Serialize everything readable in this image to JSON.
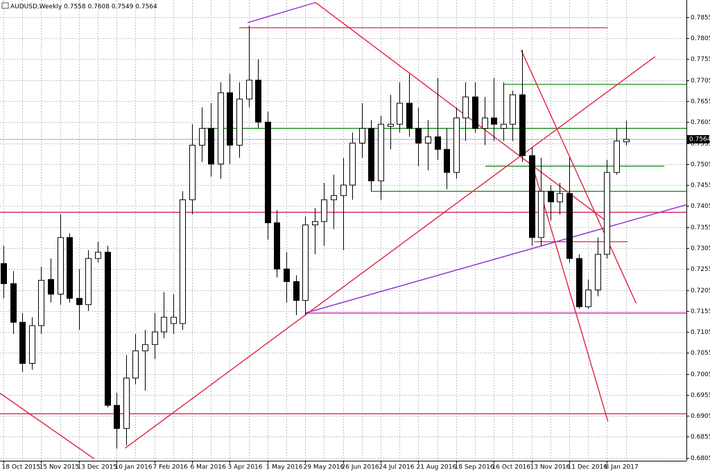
{
  "chart_data": {
    "type": "candlestick",
    "title": "AUDUSD,Weekly",
    "categories": [
      "18 Oct 2015",
      null,
      null,
      null,
      "15 Nov 2015",
      null,
      null,
      null,
      "13 Dec 2015",
      null,
      null,
      null,
      "10 Jan 2016",
      null,
      null,
      null,
      "7 Feb 2016",
      null,
      null,
      null,
      "6 Mar 2016",
      null,
      null,
      null,
      "3 Apr 2016",
      null,
      null,
      null,
      "1 May 2016",
      null,
      null,
      null,
      "29 May 2016",
      null,
      null,
      null,
      "26 Jun 2016",
      null,
      null,
      null,
      "24 Jul 2016",
      null,
      null,
      null,
      "21 Aug 2016",
      null,
      null,
      null,
      "18 Sep 2016",
      null,
      null,
      null,
      "16 Oct 2016",
      null,
      null,
      null,
      "13 Nov 2016",
      null,
      null,
      null,
      "11 Dec 2016",
      null,
      null,
      null,
      "8 Jan 2017",
      null,
      null
    ],
    "open": [
      0.7268,
      0.722,
      0.7128,
      0.703,
      0.712,
      0.723,
      0.7195,
      0.733,
      0.7185,
      0.717,
      0.728,
      0.7295,
      0.693,
      0.6875,
      0.6995,
      0.706,
      0.7075,
      0.7105,
      0.7125,
      0.7125,
      0.742,
      0.755,
      0.759,
      0.7505,
      0.7675,
      0.755,
      0.766,
      0.7705,
      0.7605,
      0.7365,
      0.7255,
      0.7225,
      0.718,
      0.736,
      0.7368,
      0.742,
      0.743,
      0.7455,
      0.7555,
      0.759,
      0.7465,
      0.7595,
      0.76,
      0.765,
      0.759,
      0.7555,
      0.757,
      0.754,
      0.7485,
      0.7615,
      0.7665,
      0.759,
      0.7615,
      0.759,
      0.76,
      0.767,
      0.7525,
      0.733,
      0.744,
      0.7415,
      0.7435,
      0.728,
      0.7165,
      0.7205,
      0.729,
      0.7485,
      0.7558
    ],
    "high": [
      0.731,
      0.725,
      0.715,
      0.714,
      0.726,
      0.728,
      0.7385,
      0.734,
      0.7255,
      0.73,
      0.732,
      0.731,
      0.696,
      0.705,
      0.71,
      0.711,
      0.715,
      0.72,
      0.7195,
      0.744,
      0.76,
      0.764,
      0.765,
      0.77,
      0.772,
      0.77,
      0.7835,
      0.7755,
      0.763,
      0.7395,
      0.7295,
      0.724,
      0.738,
      0.74,
      0.746,
      0.748,
      0.752,
      0.758,
      0.765,
      0.761,
      0.762,
      0.767,
      0.77,
      0.772,
      0.764,
      0.761,
      0.771,
      0.759,
      0.764,
      0.77,
      0.77,
      0.7665,
      0.771,
      0.77,
      0.768,
      0.7777,
      0.7545,
      0.752,
      0.7455,
      0.746,
      0.752,
      0.729,
      0.723,
      0.733,
      0.7515,
      0.759,
      0.7608
    ],
    "low": [
      0.7185,
      0.71,
      0.701,
      0.7015,
      0.71,
      0.7175,
      0.717,
      0.7175,
      0.711,
      0.7155,
      0.727,
      0.6925,
      0.6827,
      0.6835,
      0.698,
      0.6965,
      0.704,
      0.709,
      0.71,
      0.711,
      0.7385,
      0.751,
      0.7475,
      0.747,
      0.7505,
      0.752,
      0.764,
      0.759,
      0.7325,
      0.7235,
      0.7175,
      0.7145,
      0.7145,
      0.729,
      0.731,
      0.735,
      0.73,
      0.742,
      0.752,
      0.744,
      0.742,
      0.754,
      0.758,
      0.757,
      0.75,
      0.749,
      0.7515,
      0.7445,
      0.747,
      0.756,
      0.758,
      0.755,
      0.756,
      0.756,
      0.756,
      0.751,
      0.731,
      0.731,
      0.737,
      0.7385,
      0.727,
      0.716,
      0.716,
      0.719,
      0.728,
      0.748,
      0.7549
    ],
    "close": [
      0.722,
      0.7128,
      0.703,
      0.712,
      0.7228,
      0.7195,
      0.733,
      0.7185,
      0.717,
      0.728,
      0.7295,
      0.693,
      0.6875,
      0.6995,
      0.706,
      0.7075,
      0.7105,
      0.714,
      0.714,
      0.742,
      0.755,
      0.759,
      0.7505,
      0.7675,
      0.755,
      0.766,
      0.7705,
      0.7605,
      0.7365,
      0.7255,
      0.7225,
      0.718,
      0.736,
      0.7368,
      0.742,
      0.743,
      0.7455,
      0.7555,
      0.759,
      0.7465,
      0.76,
      0.76,
      0.765,
      0.759,
      0.7555,
      0.757,
      0.754,
      0.7485,
      0.7615,
      0.7665,
      0.759,
      0.7615,
      0.76,
      0.76,
      0.767,
      0.7525,
      0.733,
      0.744,
      0.7415,
      0.7435,
      0.728,
      0.7165,
      0.7205,
      0.729,
      0.7485,
      0.756,
      0.7564
    ],
    "xlim": [
      -0.37,
      72.43
    ],
    "ylim": [
      0.6798,
      0.7896
    ],
    "yticks": [
      0.7855,
      0.7805,
      0.7755,
      0.7705,
      0.7655,
      0.7605,
      0.7555,
      0.7505,
      0.7455,
      0.7405,
      0.7355,
      0.7305,
      0.7255,
      0.7205,
      0.7155,
      0.7105,
      0.7055,
      0.7005,
      0.6955,
      0.6905,
      0.6855,
      0.6805
    ],
    "grid": true,
    "levels": [
      {
        "value": 0.783,
        "x": [
          25.0,
          64.1
        ],
        "color": "#e0203a"
      },
      {
        "value": 0.7695,
        "x": [
          53.1,
          72.43
        ],
        "color": "#1a8a1a"
      },
      {
        "value": 0.759,
        "x": [
          21.0,
          72.43
        ],
        "color": "#1a8a1a"
      },
      {
        "value": 0.75,
        "x": [
          51.1,
          70.1
        ],
        "color": "#1a8a1a"
      },
      {
        "value": 0.744,
        "x": [
          39.0,
          72.43
        ],
        "color": "#1a8a1a"
      },
      {
        "value": 0.739,
        "x": [
          -0.37,
          72.43
        ],
        "color": "#d0205a"
      },
      {
        "value": 0.732,
        "x": [
          56.3,
          66.2
        ],
        "color": "#e0203a"
      },
      {
        "value": 0.715,
        "x": [
          32.0,
          72.43
        ],
        "color": "#d020b0"
      },
      {
        "value": 0.691,
        "x": [
          -0.37,
          72.43
        ],
        "color": "#d0205a"
      }
    ],
    "trendlines": [
      {
        "x": [
          25.9,
          33.1
        ],
        "y": [
          0.7842,
          0.789
        ],
        "color": "#9a2ad0"
      },
      {
        "x": [
          33.1,
          64.0
        ],
        "y": [
          0.789,
          0.7368
        ],
        "color": "#e0203a"
      },
      {
        "x": [
          12.9,
          69.1
        ],
        "y": [
          0.6828,
          0.7761
        ],
        "color": "#e0203a"
      },
      {
        "x": [
          -0.37,
          9.6
        ],
        "y": [
          0.6959,
          0.6803
        ],
        "color": "#e0203a"
      },
      {
        "x": [
          32.0,
          72.4
        ],
        "y": [
          0.715,
          0.7408
        ],
        "color": "#8a2ad0"
      },
      {
        "x": [
          54.9,
          67.1
        ],
        "y": [
          0.7777,
          0.7173
        ],
        "color": "#e0203a"
      },
      {
        "x": [
          55.9,
          64.1
        ],
        "y": [
          0.7517,
          0.6892
        ],
        "color": "#e0203a"
      }
    ]
  }
}
